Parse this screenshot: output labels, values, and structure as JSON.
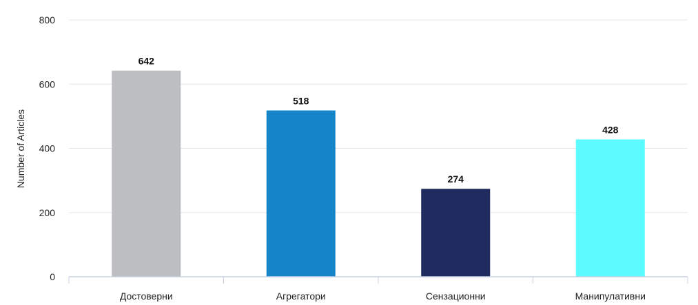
{
  "chart_data": {
    "type": "bar",
    "title": "",
    "xlabel": "",
    "ylabel": "Number of Articles",
    "categories": [
      "Достоверни",
      "Агрегатори",
      "Сензационни",
      "Манипулативни"
    ],
    "values": [
      642,
      518,
      274,
      428
    ],
    "colors": [
      "#BDBEC0",
      "#1585C7",
      "#1F2A5E",
      "#5CFBFF"
    ],
    "ylim": [
      0,
      800
    ],
    "yticks": [
      0,
      200,
      400,
      600,
      800
    ],
    "grid": true,
    "legend": "none",
    "data_labels": true
  }
}
